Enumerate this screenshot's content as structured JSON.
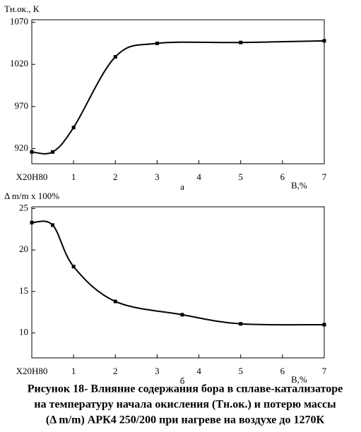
{
  "chart_data": [
    {
      "type": "line",
      "ylabel": "Тн.ок., К",
      "xlabel": "B,%",
      "panel_label": "а",
      "x": [
        0,
        0.5,
        1,
        2,
        3,
        5,
        7
      ],
      "values": [
        916,
        916,
        945,
        1029,
        1045,
        1046,
        1048
      ],
      "color": "#000000",
      "xlim": [
        0,
        7
      ],
      "xticks": [
        {
          "value": 0,
          "label": "Х20Н80"
        },
        1,
        2,
        3,
        4,
        5,
        6,
        7
      ],
      "ylim": [
        902,
        1073
      ],
      "yticks": [
        920,
        970,
        1020,
        1070
      ],
      "grid": false
    },
    {
      "type": "line",
      "ylabel": "Δ m/m x 100%",
      "xlabel": "B,%",
      "panel_label": "б",
      "x": [
        0,
        0.5,
        1,
        2,
        3.6,
        5,
        7
      ],
      "values": [
        23.3,
        23.0,
        18.0,
        13.8,
        12.2,
        11.1,
        11.0
      ],
      "color": "#000000",
      "xlim": [
        0,
        7
      ],
      "xticks": [
        {
          "value": 0,
          "label": "Х20Н80"
        },
        1,
        2,
        3,
        4,
        5,
        6,
        7
      ],
      "ylim": [
        7,
        25.2
      ],
      "yticks": [
        10,
        15,
        20,
        25
      ],
      "grid": false
    }
  ],
  "caption": [
    "Рисунок 18- Влияние содержания бора в сплаве-катализаторе",
    "на температуру начала окисления (Тн.ок.) и потерю массы",
    "(Δ m/m) АРК4 250/200 при нагреве на воздухе до 1270К"
  ]
}
